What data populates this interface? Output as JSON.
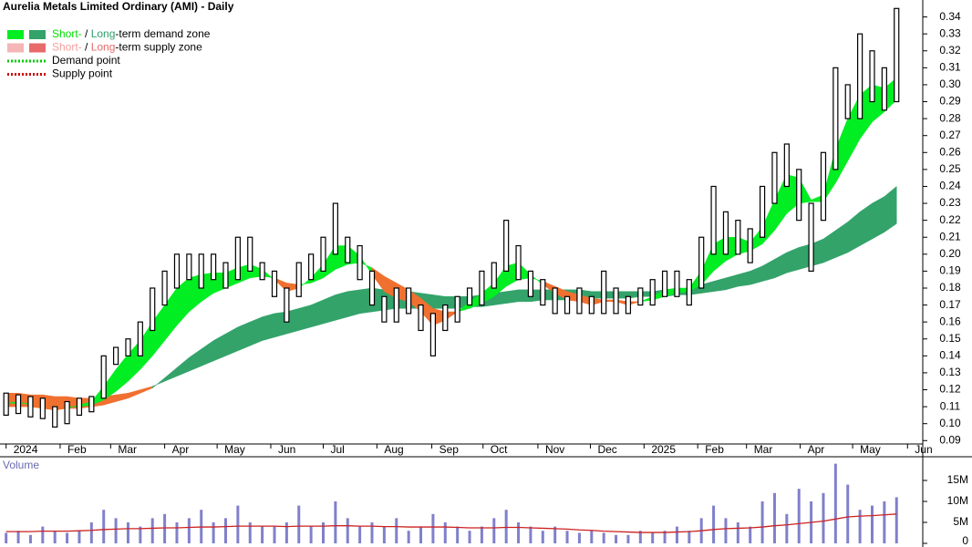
{
  "chart_data": {
    "type": "ohlc",
    "title": "Aurelia Metals Limited Ordinary (AMI) - Daily",
    "legend": [
      {
        "parts": [
          "Short-",
          " / ",
          "Long",
          "-term demand zone"
        ],
        "part_colors": [
          "#00dd00",
          "#000000",
          "#2e9e6a",
          "#000000"
        ],
        "swatches": [
          "#00ee22",
          "#33a36a"
        ]
      },
      {
        "parts": [
          "Short-",
          " / ",
          "Long",
          "-term supply zone"
        ],
        "part_colors": [
          "#f4a0a0",
          "#000000",
          "#e86a6a",
          "#000000"
        ],
        "swatches": [
          "#f4b6b6",
          "#e86a6a"
        ]
      },
      {
        "parts": [
          "Demand point"
        ],
        "line_color": "#00cc00"
      },
      {
        "parts": [
          "Supply point"
        ],
        "line_color": "#cc0000"
      }
    ],
    "xlim": [
      -0.5,
      75
    ],
    "xticks": [
      {
        "value": 0,
        "label": "2024"
      },
      {
        "value": 4.43,
        "label": "Feb"
      },
      {
        "value": 8.57,
        "label": "Mar"
      },
      {
        "value": 13,
        "label": "Apr"
      },
      {
        "value": 17.3,
        "label": "May"
      },
      {
        "value": 21.7,
        "label": "Jun"
      },
      {
        "value": 26,
        "label": "Jul"
      },
      {
        "value": 30.4,
        "label": "Aug"
      },
      {
        "value": 34.9,
        "label": "Sep"
      },
      {
        "value": 39.1,
        "label": "Oct"
      },
      {
        "value": 43.6,
        "label": "Nov"
      },
      {
        "value": 47.9,
        "label": "Dec"
      },
      {
        "value": 52.3,
        "label": "2025"
      },
      {
        "value": 56.7,
        "label": "Feb"
      },
      {
        "value": 60.7,
        "label": "Mar"
      },
      {
        "value": 65.1,
        "label": "Apr"
      },
      {
        "value": 69.4,
        "label": "May"
      },
      {
        "value": 73.9,
        "label": "Jun"
      }
    ],
    "ylim": [
      0.088,
      0.35
    ],
    "yticks": [
      {
        "value": 0.09,
        "label": "0.09"
      },
      {
        "value": 0.1,
        "label": "0.10"
      },
      0.11,
      0.12,
      0.13,
      0.14,
      0.15,
      0.16,
      0.17,
      0.18,
      0.19,
      {
        "value": 0.2,
        "label": "0.20"
      },
      0.21,
      0.22,
      0.23,
      0.24,
      0.25,
      0.26,
      0.27,
      0.28,
      0.29,
      {
        "value": 0.3,
        "label": "0.30"
      },
      0.31,
      0.32,
      0.33,
      0.34
    ],
    "grid": false,
    "bar_color": "#000000",
    "high": [
      0.118,
      0.117,
      0.116,
      0.115,
      0.11,
      0.113,
      0.115,
      0.116,
      0.14,
      0.145,
      0.15,
      0.16,
      0.18,
      0.19,
      0.2,
      0.2,
      0.2,
      0.2,
      0.195,
      0.21,
      0.21,
      0.195,
      0.19,
      0.18,
      0.195,
      0.2,
      0.21,
      0.23,
      0.21,
      0.205,
      0.19,
      0.175,
      0.18,
      0.18,
      0.17,
      0.165,
      0.17,
      0.175,
      0.18,
      0.19,
      0.195,
      0.22,
      0.205,
      0.19,
      0.185,
      0.18,
      0.175,
      0.18,
      0.175,
      0.19,
      0.18,
      0.175,
      0.18,
      0.185,
      0.19,
      0.19,
      0.185,
      0.21,
      0.24,
      0.225,
      0.22,
      0.215,
      0.24,
      0.26,
      0.265,
      0.25,
      0.23,
      0.26,
      0.31,
      0.3,
      0.33,
      0.32,
      0.31,
      0.345
    ],
    "low": [
      0.105,
      0.106,
      0.104,
      0.103,
      0.098,
      0.1,
      0.105,
      0.107,
      0.115,
      0.135,
      0.14,
      0.14,
      0.155,
      0.17,
      0.18,
      0.185,
      0.18,
      0.185,
      0.18,
      0.185,
      0.19,
      0.185,
      0.175,
      0.16,
      0.175,
      0.185,
      0.19,
      0.2,
      0.195,
      0.185,
      0.17,
      0.16,
      0.16,
      0.165,
      0.155,
      0.14,
      0.155,
      0.16,
      0.17,
      0.17,
      0.18,
      0.19,
      0.185,
      0.175,
      0.17,
      0.165,
      0.165,
      0.165,
      0.165,
      0.165,
      0.165,
      0.165,
      0.17,
      0.17,
      0.175,
      0.175,
      0.17,
      0.18,
      0.2,
      0.2,
      0.2,
      0.195,
      0.21,
      0.23,
      0.24,
      0.22,
      0.19,
      0.22,
      0.25,
      0.28,
      0.28,
      0.29,
      0.285,
      0.29
    ],
    "short_zone": {
      "demand_color": "#00ee22",
      "supply_color": "#f07030",
      "fast": [
        0.112,
        0.113,
        0.111,
        0.109,
        0.108,
        0.109,
        0.111,
        0.113,
        0.122,
        0.132,
        0.141,
        0.149,
        0.16,
        0.17,
        0.18,
        0.186,
        0.188,
        0.189,
        0.189,
        0.192,
        0.194,
        0.191,
        0.185,
        0.178,
        0.18,
        0.186,
        0.194,
        0.205,
        0.205,
        0.199,
        0.188,
        0.178,
        0.174,
        0.172,
        0.166,
        0.158,
        0.161,
        0.166,
        0.172,
        0.177,
        0.183,
        0.193,
        0.195,
        0.188,
        0.182,
        0.177,
        0.173,
        0.172,
        0.17,
        0.172,
        0.172,
        0.17,
        0.172,
        0.175,
        0.179,
        0.18,
        0.18,
        0.19,
        0.206,
        0.21,
        0.21,
        0.207,
        0.216,
        0.232,
        0.247,
        0.245,
        0.232,
        0.235,
        0.262,
        0.28,
        0.294,
        0.3,
        0.298,
        0.304
      ],
      "slow": [
        0.112,
        0.112,
        0.112,
        0.111,
        0.11,
        0.11,
        0.11,
        0.111,
        0.114,
        0.119,
        0.125,
        0.132,
        0.14,
        0.149,
        0.158,
        0.166,
        0.172,
        0.177,
        0.18,
        0.183,
        0.186,
        0.187,
        0.186,
        0.183,
        0.182,
        0.183,
        0.186,
        0.191,
        0.194,
        0.195,
        0.192,
        0.187,
        0.183,
        0.179,
        0.174,
        0.168,
        0.166,
        0.166,
        0.168,
        0.171,
        0.175,
        0.181,
        0.185,
        0.186,
        0.184,
        0.181,
        0.178,
        0.176,
        0.174,
        0.173,
        0.173,
        0.172,
        0.172,
        0.173,
        0.175,
        0.177,
        0.178,
        0.182,
        0.19,
        0.196,
        0.2,
        0.202,
        0.206,
        0.214,
        0.224,
        0.23,
        0.231,
        0.231,
        0.242,
        0.255,
        0.268,
        0.278,
        0.284,
        0.291
      ]
    },
    "long_zone": {
      "demand_color": "#33a36a",
      "supply_color": "#f07030",
      "fast": [
        0.11,
        0.11,
        0.11,
        0.109,
        0.109,
        0.109,
        0.109,
        0.11,
        0.111,
        0.113,
        0.115,
        0.118,
        0.121,
        0.127,
        0.133,
        0.139,
        0.144,
        0.149,
        0.153,
        0.157,
        0.16,
        0.163,
        0.165,
        0.166,
        0.168,
        0.17,
        0.173,
        0.176,
        0.178,
        0.179,
        0.18,
        0.179,
        0.179,
        0.178,
        0.177,
        0.176,
        0.175,
        0.175,
        0.175,
        0.176,
        0.177,
        0.178,
        0.179,
        0.179,
        0.179,
        0.179,
        0.179,
        0.179,
        0.178,
        0.178,
        0.178,
        0.178,
        0.178,
        0.178,
        0.179,
        0.179,
        0.18,
        0.182,
        0.184,
        0.186,
        0.188,
        0.19,
        0.193,
        0.197,
        0.201,
        0.204,
        0.206,
        0.209,
        0.214,
        0.219,
        0.225,
        0.23,
        0.234,
        0.24
      ],
      "slow": [
        0.118,
        0.118,
        0.117,
        0.117,
        0.116,
        0.116,
        0.115,
        0.115,
        0.116,
        0.117,
        0.118,
        0.12,
        0.122,
        0.125,
        0.128,
        0.131,
        0.134,
        0.137,
        0.14,
        0.143,
        0.146,
        0.149,
        0.151,
        0.153,
        0.155,
        0.157,
        0.159,
        0.161,
        0.163,
        0.165,
        0.166,
        0.167,
        0.168,
        0.168,
        0.168,
        0.168,
        0.168,
        0.168,
        0.169,
        0.169,
        0.17,
        0.171,
        0.172,
        0.172,
        0.173,
        0.173,
        0.173,
        0.174,
        0.174,
        0.174,
        0.174,
        0.174,
        0.175,
        0.175,
        0.175,
        0.176,
        0.176,
        0.177,
        0.178,
        0.179,
        0.181,
        0.182,
        0.184,
        0.186,
        0.189,
        0.191,
        0.193,
        0.195,
        0.198,
        0.201,
        0.205,
        0.209,
        0.213,
        0.218
      ]
    },
    "volume": {
      "label": "Volume",
      "color": "#8080cc",
      "average_color": "#cc2222",
      "ylim": [
        0,
        20000000
      ],
      "yticks": [
        {
          "value": 0,
          "label": "0"
        },
        {
          "value": 5000000,
          "label": "5M"
        },
        {
          "value": 10000000,
          "label": "10M"
        },
        {
          "value": 15000000,
          "label": "15M"
        }
      ],
      "values": [
        2500000,
        3000000,
        2000000,
        4000000,
        3000000,
        2500000,
        3000000,
        5000000,
        8000000,
        6000000,
        5000000,
        4000000,
        6000000,
        7000000,
        5000000,
        6000000,
        8000000,
        5000000,
        6000000,
        9000000,
        5000000,
        4000000,
        4000000,
        5000000,
        9000000,
        4000000,
        5000000,
        10000000,
        6000000,
        4000000,
        5000000,
        4000000,
        6000000,
        3000000,
        4000000,
        7000000,
        5000000,
        4000000,
        3000000,
        4000000,
        6000000,
        8000000,
        5000000,
        4000000,
        3000000,
        4000000,
        3000000,
        2500000,
        3000000,
        2500000,
        2000000,
        2000000,
        3000000,
        2500000,
        3000000,
        4000000,
        3000000,
        6000000,
        9000000,
        6000000,
        5000000,
        4000000,
        10000000,
        12000000,
        7000000,
        13000000,
        10000000,
        12000000,
        19000000,
        14000000,
        8000000,
        9000000,
        10000000,
        11000000
      ],
      "average": [
        2800000,
        2800000,
        2800000,
        2900000,
        2900000,
        2900000,
        3000000,
        3100000,
        3300000,
        3400000,
        3500000,
        3500000,
        3600000,
        3700000,
        3700000,
        3800000,
        3900000,
        3900000,
        4000000,
        4100000,
        4100000,
        4100000,
        4100000,
        4000000,
        4100000,
        4100000,
        4100000,
        4200000,
        4200000,
        4100000,
        4100000,
        4000000,
        4000000,
        3900000,
        3900000,
        3900000,
        3900000,
        3800000,
        3700000,
        3700000,
        3700000,
        3800000,
        3800000,
        3700000,
        3600000,
        3500000,
        3400000,
        3200000,
        3100000,
        2900000,
        2800000,
        2700000,
        2600000,
        2600000,
        2600000,
        2700000,
        2800000,
        3000000,
        3300000,
        3500000,
        3600000,
        3700000,
        3900000,
        4200000,
        4400000,
        4700000,
        5000000,
        5300000,
        5800000,
        6300000,
        6500000,
        6600000,
        6800000,
        7000000
      ]
    }
  }
}
